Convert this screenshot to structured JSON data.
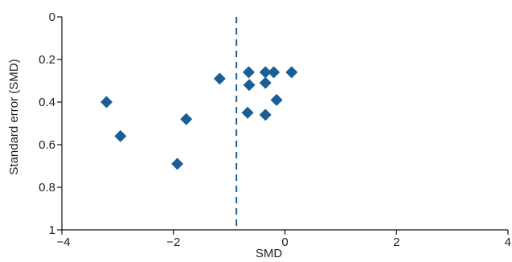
{
  "chart_data": {
    "type": "scatter",
    "title": "",
    "xlabel": "SMD",
    "ylabel": "Standard error (SMD)",
    "xlim": [
      -4,
      4
    ],
    "ylim": [
      0,
      1
    ],
    "y_inverted": true,
    "x_ticks": [
      -4,
      -2,
      0,
      2,
      4
    ],
    "x_tick_labels": [
      "−4",
      "−2",
      "0",
      "2",
      "4"
    ],
    "y_ticks": [
      0,
      0.2,
      0.4,
      0.6,
      0.8,
      1
    ],
    "y_tick_labels": [
      "0",
      "0.2",
      "0.4",
      "0.6",
      "0.8",
      "1"
    ],
    "reference_line_x": -0.87,
    "grid": false,
    "marker": "diamond",
    "color": "#1b5e96",
    "points": [
      {
        "x": -3.2,
        "y": 0.4
      },
      {
        "x": -2.95,
        "y": 0.56
      },
      {
        "x": -1.93,
        "y": 0.69
      },
      {
        "x": -1.77,
        "y": 0.48
      },
      {
        "x": -1.17,
        "y": 0.29
      },
      {
        "x": -0.65,
        "y": 0.26
      },
      {
        "x": -0.64,
        "y": 0.32
      },
      {
        "x": -0.67,
        "y": 0.45
      },
      {
        "x": -0.35,
        "y": 0.26
      },
      {
        "x": -0.35,
        "y": 0.31
      },
      {
        "x": -0.35,
        "y": 0.46
      },
      {
        "x": -0.2,
        "y": 0.26
      },
      {
        "x": -0.15,
        "y": 0.39
      },
      {
        "x": 0.12,
        "y": 0.26
      }
    ]
  }
}
